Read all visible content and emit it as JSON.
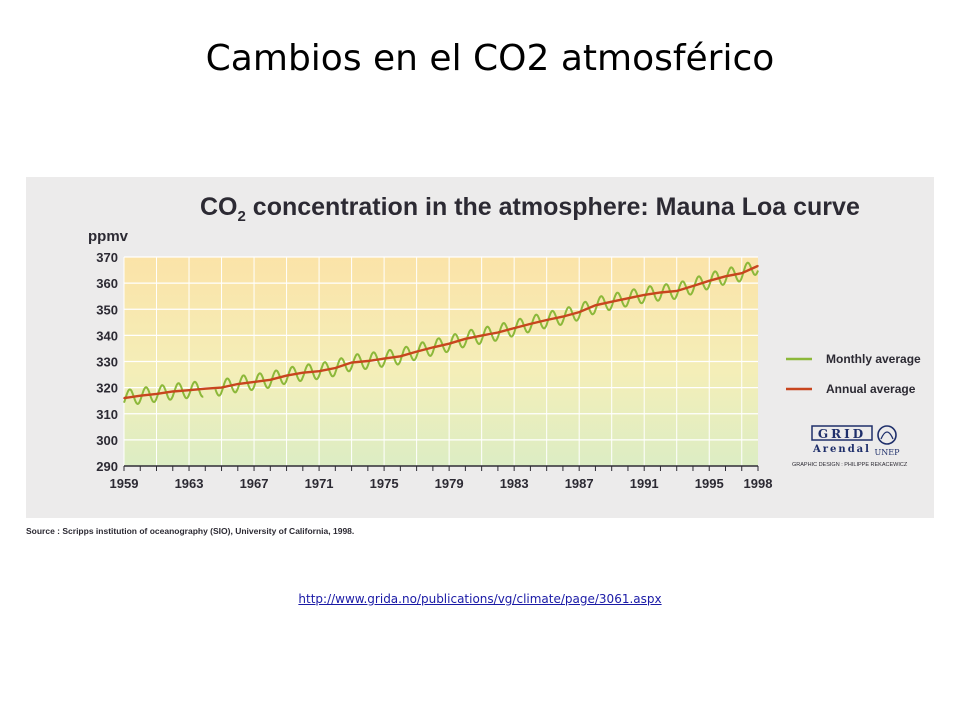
{
  "slide": {
    "title": "Cambios en el CO2 atmosférico",
    "link": "http://www.grida.no/publications/vg/climate/page/3061.aspx"
  },
  "figure": {
    "source": "Source : Scripps institution of oceanography (SIO), University of California, 1998.",
    "credit": "GRAPHIC DESIGN : PHILIPPE REKACEWICZ",
    "logo_grid": "GRID",
    "logo_arendal": "Arendal",
    "logo_unep": "UNEP"
  },
  "chart_data": {
    "type": "line",
    "title_main": "CO",
    "title_sub": "2",
    "title_rest": " concentration in the atmosphere: Mauna Loa curve",
    "ylabel": "ppmv",
    "xlim": [
      1959,
      1998
    ],
    "ylim": [
      290,
      370
    ],
    "yticks": [
      290,
      300,
      310,
      320,
      330,
      340,
      350,
      360,
      370
    ],
    "xticks": [
      1959,
      1963,
      1967,
      1971,
      1975,
      1979,
      1983,
      1987,
      1991,
      1995,
      1998
    ],
    "grid": true,
    "legend_position": "right",
    "series": [
      {
        "name": "Monthly average",
        "color": "#8cb83a",
        "seasonal_amplitude": 3,
        "gap": [
          1963.9,
          1964.6
        ]
      },
      {
        "name": "Annual average",
        "color": "#c8451e",
        "x": [
          1959,
          1960,
          1961,
          1962,
          1963,
          1964,
          1965,
          1966,
          1967,
          1968,
          1969,
          1970,
          1971,
          1972,
          1973,
          1974,
          1975,
          1976,
          1977,
          1978,
          1979,
          1980,
          1981,
          1982,
          1983,
          1984,
          1985,
          1986,
          1987,
          1988,
          1989,
          1990,
          1991,
          1992,
          1993,
          1994,
          1995,
          1996,
          1997,
          1998
        ],
        "y": [
          316.0,
          316.9,
          317.6,
          318.5,
          319.0,
          319.6,
          320.0,
          321.4,
          322.2,
          323.0,
          324.6,
          325.7,
          326.3,
          327.5,
          329.6,
          330.2,
          331.1,
          332.0,
          333.8,
          335.4,
          336.8,
          338.7,
          339.9,
          341.1,
          342.8,
          344.4,
          345.9,
          347.2,
          348.9,
          351.5,
          352.9,
          354.2,
          355.5,
          356.4,
          357.0,
          358.9,
          360.9,
          362.6,
          363.8,
          366.6
        ]
      }
    ]
  }
}
